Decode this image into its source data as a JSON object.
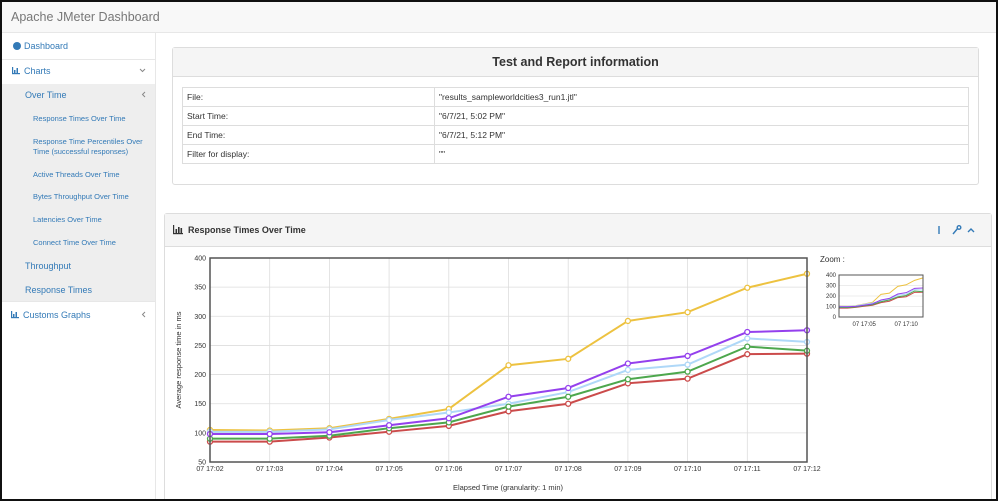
{
  "header": {
    "title": "Apache JMeter Dashboard"
  },
  "sidebar": {
    "items": [
      "Dashboard",
      "Charts",
      "Over Time",
      "Response Times Over Time",
      "Response Time Percentiles Over Time (successful responses)",
      "Active Threads Over Time",
      "Bytes Throughput Over Time",
      "Latencies Over Time",
      "Connect Time Over Time",
      "Throughput",
      "Response Times",
      "Customs Graphs"
    ]
  },
  "info": {
    "title": "Test and Report information",
    "rows": [
      [
        "File:",
        "\"results_sampleworldcities3_run1.jtl\""
      ],
      [
        "Start Time:",
        "\"6/7/21, 5:02 PM\""
      ],
      [
        "End Time:",
        "\"6/7/21, 5:12 PM\""
      ],
      [
        "Filter for display:",
        "\"\""
      ]
    ]
  },
  "panel": {
    "title": "Response Times Over Time"
  },
  "chart_data": {
    "type": "line",
    "x_label": "Elapsed Time (granularity: 1 min)",
    "y_label": "Average response time in ms",
    "categories": [
      "07 17:02",
      "07 17:03",
      "07 17:04",
      "07 17:05",
      "07 17:06",
      "07 17:07",
      "07 17:08",
      "07 17:09",
      "07 17:10",
      "07 17:11",
      "07 17:12"
    ],
    "ylim": [
      50,
      400
    ],
    "yticks": [
      50,
      100,
      150,
      200,
      250,
      300,
      350,
      400
    ],
    "grid": true,
    "series": [
      {
        "color": "#edc240",
        "values": [
          105,
          104,
          108,
          124,
          141,
          216,
          227,
          292,
          307,
          349,
          373
        ]
      },
      {
        "color": "#afd8f8",
        "values": [
          102,
          102,
          106,
          122,
          135,
          150,
          170,
          208,
          217,
          262,
          256
        ]
      },
      {
        "color": "#cb4b4b",
        "values": [
          85,
          85,
          92,
          102,
          112,
          137,
          150,
          185,
          193,
          235,
          236
        ]
      },
      {
        "color": "#4da74d",
        "values": [
          90,
          90,
          95,
          108,
          118,
          145,
          162,
          192,
          205,
          248,
          241
        ]
      },
      {
        "color": "#9440ed",
        "values": [
          98,
          98,
          101,
          113,
          125,
          162,
          177,
          219,
          232,
          273,
          276
        ]
      }
    ],
    "zoom": {
      "label": "Zoom :",
      "ylim": [
        0,
        400
      ],
      "yticks": [
        0,
        100,
        200,
        300,
        400
      ]
    }
  }
}
